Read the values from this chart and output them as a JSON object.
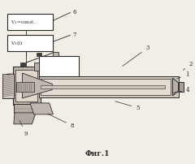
{
  "title": "Фиг.1",
  "bg_color": "#f2ede5",
  "line_color": "#2a2a2a",
  "hatch_color": "#888080",
  "label6_text": "V₁=const.",
  "label7_text": "V₂(t)",
  "labels": {
    "1": [
      0.955,
      0.535,
      0.9,
      0.515
    ],
    "2": [
      0.975,
      0.6,
      0.935,
      0.565
    ],
    "3": [
      0.75,
      0.7,
      0.62,
      0.59
    ],
    "4": [
      0.96,
      0.44,
      0.88,
      0.43
    ],
    "5": [
      0.7,
      0.33,
      0.58,
      0.385
    ],
    "8": [
      0.36,
      0.22,
      0.23,
      0.31
    ],
    "9": [
      0.12,
      0.17,
      0.09,
      0.275
    ]
  }
}
